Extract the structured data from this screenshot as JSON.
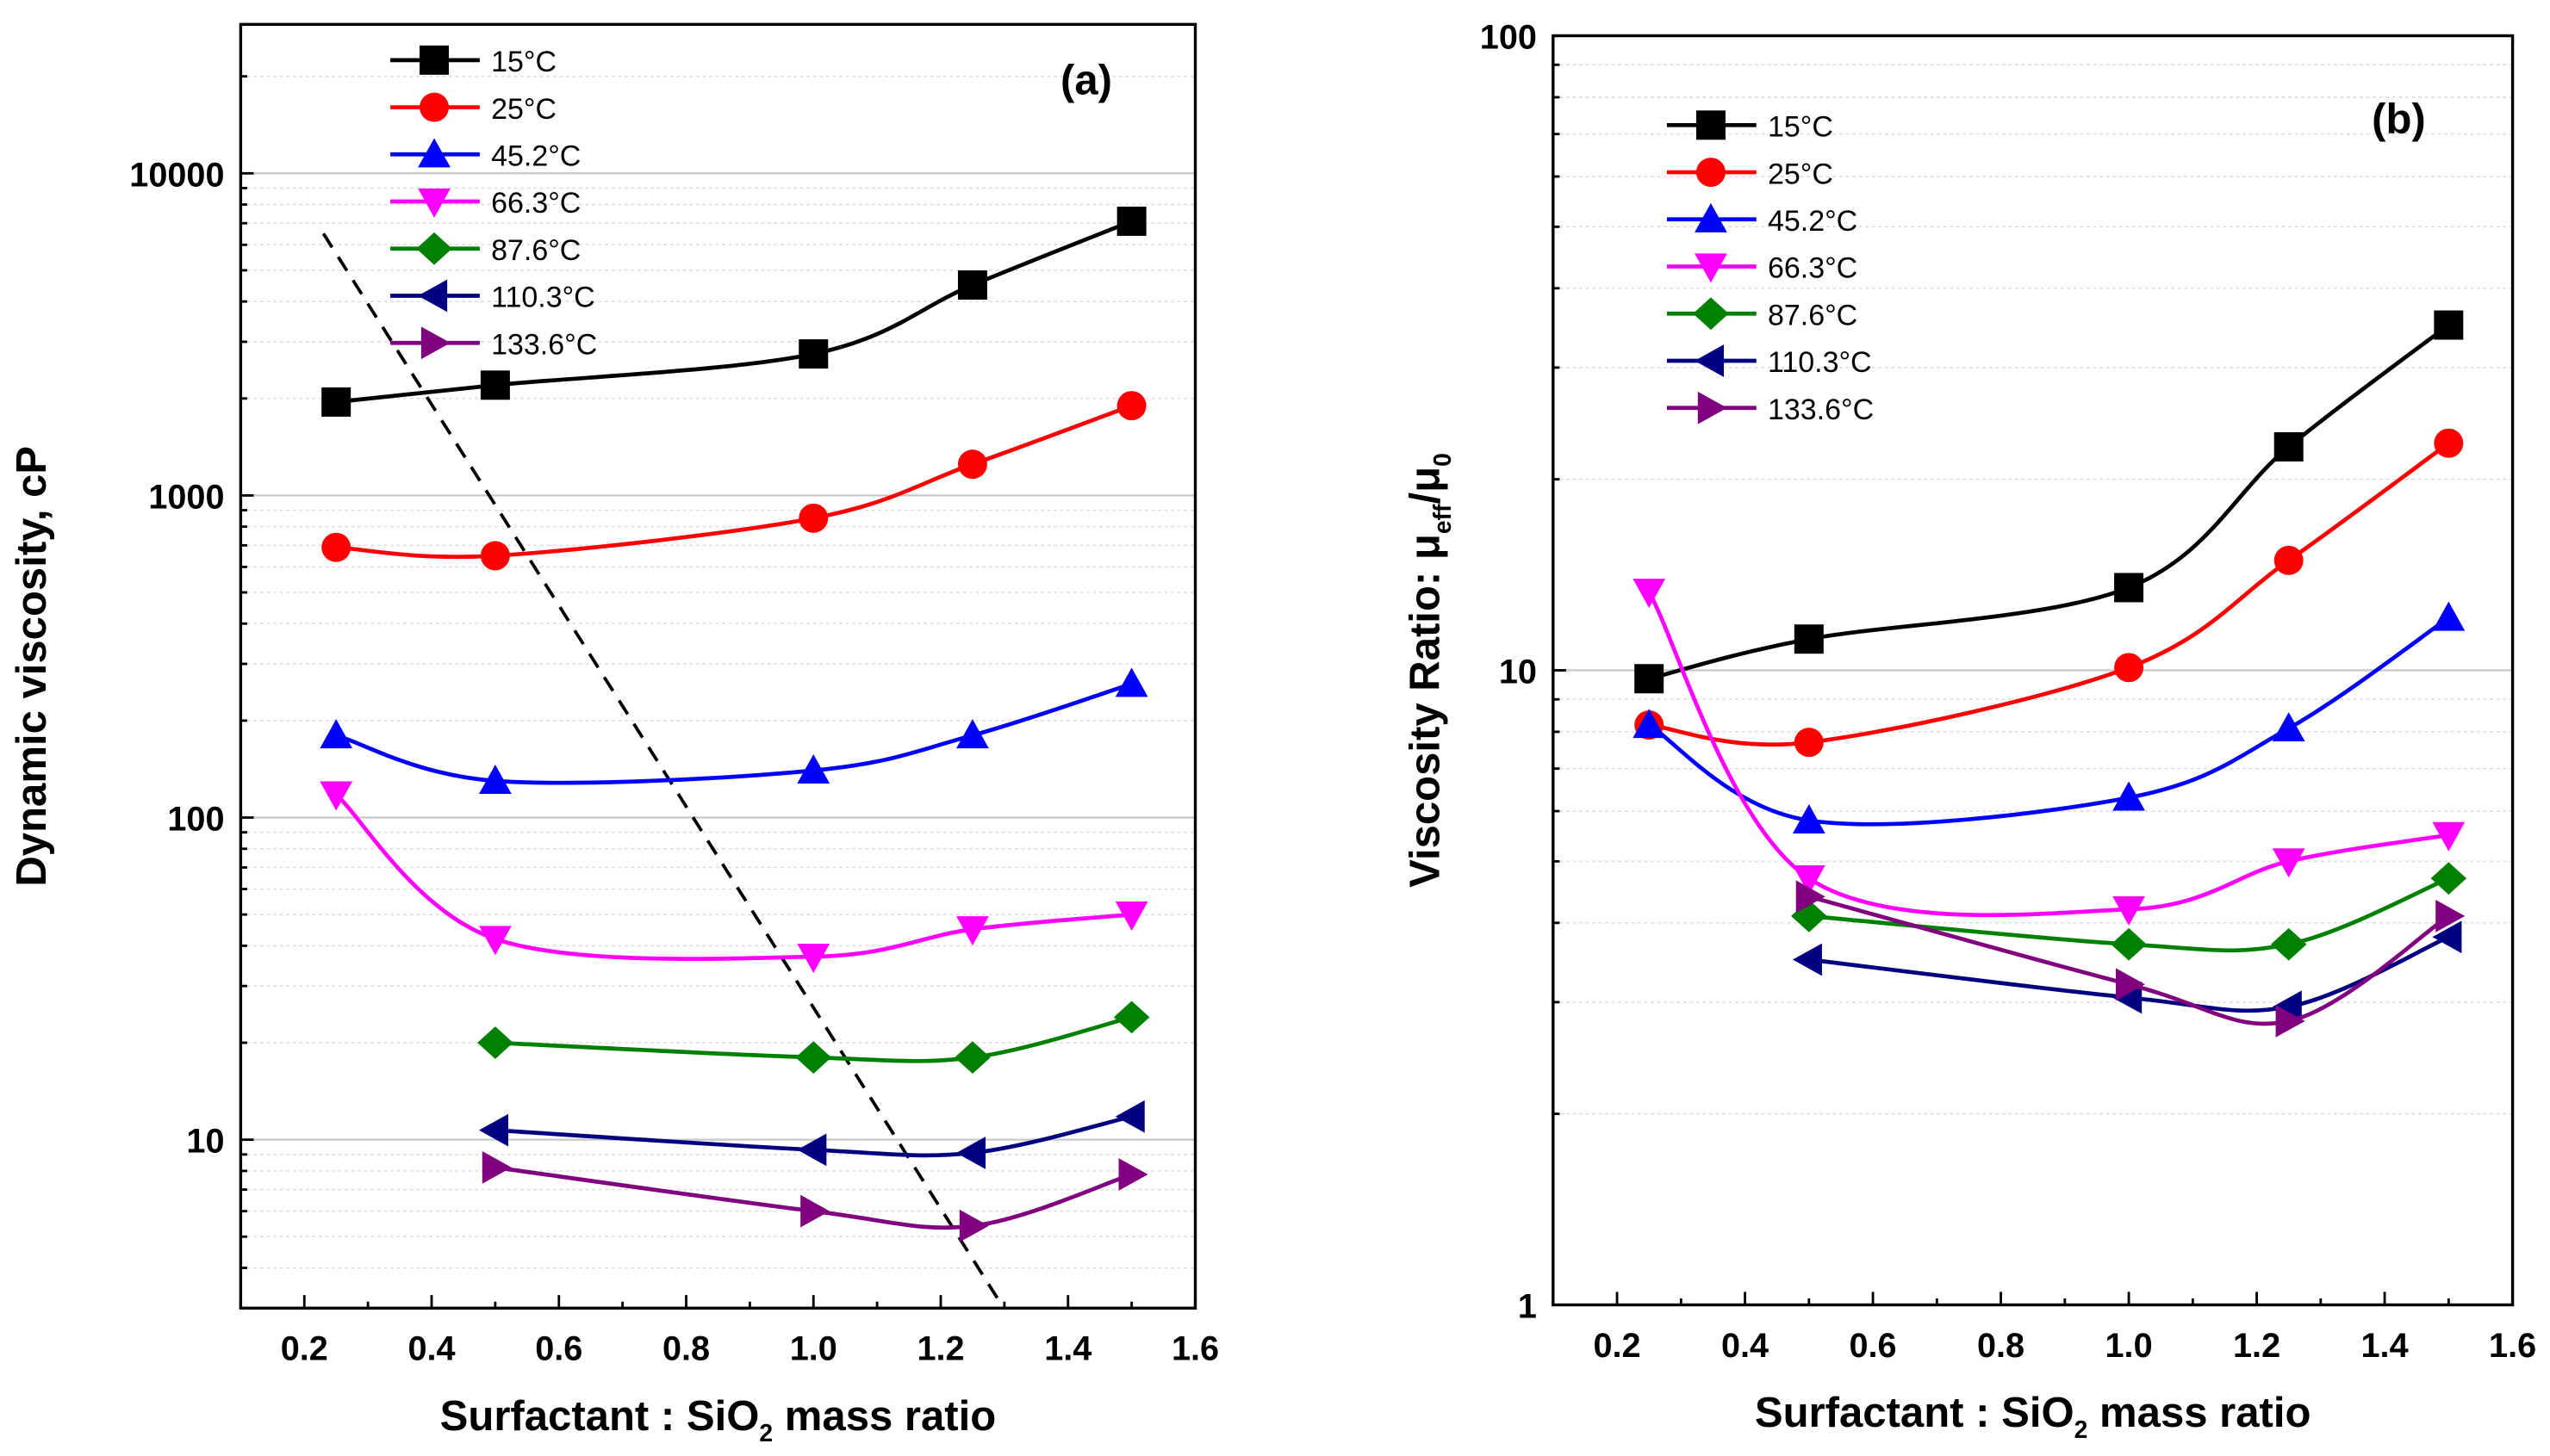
{
  "chart_data": [
    {
      "type": "line",
      "panel_label": "(a)",
      "xlabel": "Surfactant : SiO2 mass ratio",
      "xlabel_parts": [
        "Surfactant : SiO",
        "2",
        " mass ratio"
      ],
      "ylabel": "Dynamic viscosity, cP",
      "yscale": "log",
      "xlim": [
        0.1,
        1.6
      ],
      "ylim": [
        3,
        29000
      ],
      "xticks": [
        "0.2",
        "0.4",
        "0.6",
        "0.8",
        "1.0",
        "1.2",
        "1.4",
        "1.6"
      ],
      "yticks": [
        "10",
        "100",
        "1000",
        "10000"
      ],
      "grid": true,
      "legend_position": "top-left",
      "series": [
        {
          "name": "15°C",
          "color": "#000000",
          "marker": "square",
          "x": [
            0.25,
            0.5,
            1.0,
            1.25,
            1.5
          ],
          "y": [
            1950,
            2200,
            2750,
            4500,
            7100
          ]
        },
        {
          "name": "25°C",
          "color": "#ff0000",
          "marker": "circle",
          "x": [
            0.25,
            0.5,
            1.0,
            1.25,
            1.5
          ],
          "y": [
            690,
            650,
            850,
            1250,
            1900
          ]
        },
        {
          "name": "45.2°C",
          "color": "#0000ff",
          "marker": "triangle-up",
          "x": [
            0.25,
            0.5,
            1.0,
            1.25,
            1.5
          ],
          "y": [
            180,
            130,
            140,
            180,
            260
          ]
        },
        {
          "name": "66.3°C",
          "color": "#ff00ff",
          "marker": "triangle-down",
          "x": [
            0.25,
            0.5,
            1.0,
            1.25,
            1.5
          ],
          "y": [
            118,
            42,
            37,
            45,
            50
          ]
        },
        {
          "name": "87.6°C",
          "color": "#008000",
          "marker": "diamond",
          "x": [
            0.5,
            1.0,
            1.25,
            1.5
          ],
          "y": [
            20,
            18,
            18,
            24
          ]
        },
        {
          "name": "110.3°C",
          "color": "#000080",
          "marker": "triangle-left",
          "x": [
            0.5,
            1.0,
            1.25,
            1.5
          ],
          "y": [
            10.7,
            9.3,
            9.1,
            11.8
          ]
        },
        {
          "name": "133.6°C",
          "color": "#800080",
          "marker": "triangle-right",
          "x": [
            0.5,
            1.0,
            1.25,
            1.5
          ],
          "y": [
            8.2,
            6.0,
            5.4,
            7.8
          ]
        }
      ],
      "dashed_line": {
        "x": [
          0.23,
          1.29
        ],
        "y": [
          6500,
          3.2
        ]
      }
    },
    {
      "type": "line",
      "panel_label": "(b)",
      "xlabel": "Surfactant : SiO2 mass ratio",
      "xlabel_parts": [
        "Surfactant : SiO",
        "2",
        " mass ratio"
      ],
      "ylabel": "Viscosity Ratio: μeff/μ0",
      "ylabel_parts": [
        "Viscosity Ratio: μ",
        "eff",
        "/μ",
        "0"
      ],
      "yscale": "log",
      "xlim": [
        0.1,
        1.6
      ],
      "ylim": [
        1,
        100
      ],
      "xticks": [
        "0.2",
        "0.4",
        "0.6",
        "0.8",
        "1.0",
        "1.2",
        "1.4",
        "1.6"
      ],
      "yticks": [
        "1",
        "10",
        "100"
      ],
      "grid": true,
      "legend_position": "top-left",
      "series": [
        {
          "name": "15°C",
          "color": "#000000",
          "marker": "square",
          "x": [
            0.25,
            0.5,
            1.0,
            1.25,
            1.5
          ],
          "y": [
            9.7,
            11.2,
            13.5,
            22.5,
            35
          ]
        },
        {
          "name": "25°C",
          "color": "#ff0000",
          "marker": "circle",
          "x": [
            0.25,
            0.5,
            1.0,
            1.25,
            1.5
          ],
          "y": [
            8.2,
            7.7,
            10.1,
            14.9,
            22.8
          ]
        },
        {
          "name": "45.2°C",
          "color": "#0000ff",
          "marker": "triangle-up",
          "x": [
            0.25,
            0.5,
            1.0,
            1.25,
            1.5
          ],
          "y": [
            8.2,
            5.8,
            6.3,
            8.1,
            12.1
          ]
        },
        {
          "name": "66.3°C",
          "color": "#ff00ff",
          "marker": "triangle-down",
          "x": [
            0.25,
            0.5,
            1.0,
            1.25,
            1.5
          ],
          "y": [
            13.3,
            4.7,
            4.2,
            5.0,
            5.5
          ]
        },
        {
          "name": "87.6°C",
          "color": "#008000",
          "marker": "diamond",
          "x": [
            0.5,
            1.0,
            1.25,
            1.5
          ],
          "y": [
            4.1,
            3.7,
            3.7,
            4.7
          ]
        },
        {
          "name": "110.3°C",
          "color": "#000080",
          "marker": "triangle-left",
          "x": [
            0.5,
            1.0,
            1.25,
            1.5
          ],
          "y": [
            3.5,
            3.05,
            2.95,
            3.8
          ]
        },
        {
          "name": "133.6°C",
          "color": "#800080",
          "marker": "triangle-right",
          "x": [
            0.5,
            1.0,
            1.25,
            1.5
          ],
          "y": [
            4.4,
            3.2,
            2.8,
            4.1
          ]
        }
      ]
    }
  ]
}
